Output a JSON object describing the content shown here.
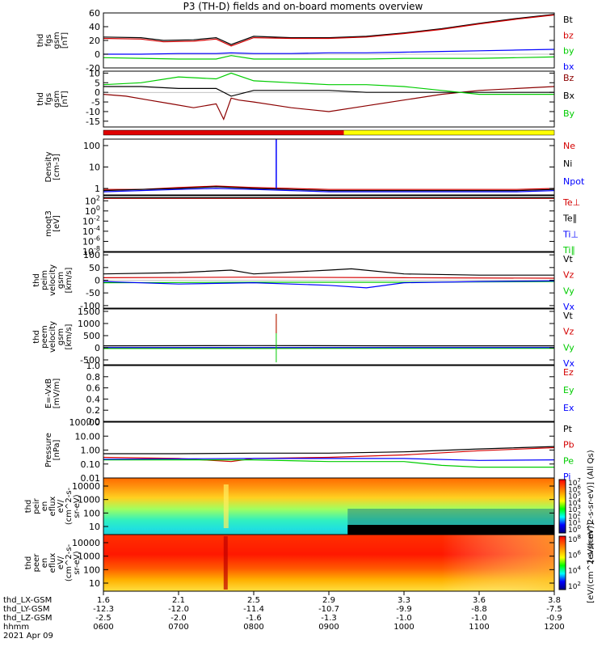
{
  "title": "P3 (TH-D) fields and on-board moments overview",
  "date": "2021 Apr 09",
  "colors": {
    "black": "#000000",
    "red": "#d40000",
    "green": "#00dd00",
    "blue": "#0000ff",
    "darkred": "#8b0000",
    "yellow": "#ffff00"
  },
  "chart_data": [
    {
      "id": "fgs-gsm",
      "type": "line",
      "ylabel": [
        "thd",
        "fgs",
        "gsm",
        "[nT]"
      ],
      "yticks": [
        "60",
        "40",
        "20",
        "0",
        "-20"
      ],
      "ylim": [
        -20,
        60
      ],
      "legend": [
        {
          "label": "Bt",
          "color": "#000000"
        },
        {
          "label": "bz",
          "color": "#d40000"
        },
        {
          "label": "by",
          "color": "#00cc00"
        },
        {
          "label": "bx",
          "color": "#0000ff"
        }
      ],
      "series": [
        {
          "name": "Bt",
          "color": "#000000",
          "x": [
            6.0,
            6.5,
            6.8,
            7.2,
            7.5,
            7.7,
            8.0,
            8.5,
            9.0,
            9.5,
            10.0,
            10.5,
            11.0,
            11.5,
            12.0
          ],
          "y": [
            25,
            24,
            20,
            21,
            24,
            14,
            26,
            24,
            24,
            26,
            31,
            37,
            45,
            52,
            58
          ]
        },
        {
          "name": "bz",
          "color": "#d40000",
          "x": [
            6.0,
            6.5,
            6.8,
            7.2,
            7.5,
            7.7,
            8.0,
            8.5,
            9.0,
            9.5,
            10.0,
            10.5,
            11.0,
            11.5,
            12.0
          ],
          "y": [
            23,
            22,
            18,
            19,
            22,
            12,
            24,
            23,
            23,
            25,
            30,
            36,
            44,
            51,
            57
          ]
        },
        {
          "name": "by",
          "color": "#00cc00",
          "x": [
            6.0,
            6.5,
            7.0,
            7.5,
            7.7,
            8.0,
            8.5,
            9.0,
            9.5,
            10.0,
            10.5,
            11.0,
            11.5,
            12.0
          ],
          "y": [
            -5,
            -6,
            -7,
            -7,
            -2,
            -7,
            -7,
            -7,
            -7,
            -6,
            -6,
            -6,
            -5,
            -4
          ]
        },
        {
          "name": "bx",
          "color": "#0000ff",
          "x": [
            6.0,
            6.5,
            7.0,
            7.5,
            7.7,
            8.0,
            8.5,
            9.0,
            9.5,
            10.0,
            10.5,
            11.0,
            11.5,
            12.0
          ],
          "y": [
            0,
            0,
            1,
            1,
            2,
            1,
            1,
            2,
            2,
            3,
            4,
            5,
            6,
            7
          ]
        }
      ]
    },
    {
      "id": "fgs-gse-zoom",
      "type": "line",
      "ylabel": [
        "thd",
        "fgs",
        "gsm",
        "[nT]"
      ],
      "yticks": [
        "10",
        "5",
        "0",
        "-5",
        "-10",
        "-15"
      ],
      "ylim": [
        -18,
        11
      ],
      "legend": [
        {
          "label": "Bz",
          "color": "#8b0000"
        },
        {
          "label": "Bx",
          "color": "#000000"
        },
        {
          "label": "By",
          "color": "#00cc00"
        }
      ],
      "series": [
        {
          "name": "Bz",
          "color": "#8b0000",
          "x": [
            6.0,
            6.3,
            6.6,
            6.9,
            7.2,
            7.5,
            7.6,
            7.7,
            7.8,
            8.0,
            8.5,
            9.0,
            9.5,
            10.0,
            10.5,
            11.0,
            11.5,
            12.0
          ],
          "y": [
            -1,
            -2,
            -4,
            -6,
            -8,
            -6,
            -14,
            -3,
            -4,
            -5,
            -8,
            -10,
            -7,
            -4,
            -1,
            1,
            2,
            3
          ]
        },
        {
          "name": "Bx",
          "color": "#000000",
          "x": [
            6.0,
            6.5,
            7.0,
            7.5,
            7.7,
            8.0,
            8.5,
            9.0,
            9.5,
            10.0,
            10.5,
            11.0,
            11.5,
            12.0
          ],
          "y": [
            3,
            3,
            2,
            2,
            -2,
            1,
            1,
            1,
            0,
            0,
            0,
            0,
            0,
            0
          ]
        },
        {
          "name": "By",
          "color": "#00cc00",
          "x": [
            6.0,
            6.5,
            7.0,
            7.5,
            7.7,
            8.0,
            8.5,
            9.0,
            9.5,
            10.0,
            10.5,
            11.0,
            11.5,
            12.0
          ],
          "y": [
            4,
            5,
            8,
            7,
            10,
            6,
            5,
            4,
            4,
            3,
            1,
            -1,
            -1,
            -1
          ]
        }
      ]
    },
    {
      "id": "density",
      "type": "line",
      "scale": "log",
      "ylabel": [
        "Density",
        "[cm-3]"
      ],
      "yticks": [
        "100",
        "10",
        "1"
      ],
      "ylim": [
        0.5,
        200
      ],
      "legend": [
        {
          "label": "Ne",
          "color": "#d40000"
        },
        {
          "label": "Ni",
          "color": "#000000"
        },
        {
          "label": "Npot",
          "color": "#0000ff"
        }
      ],
      "series": [
        {
          "name": "Ne",
          "color": "#d40000",
          "x": [
            6.0,
            6.5,
            7.0,
            7.5,
            8.0,
            8.5,
            9.0,
            9.5,
            10.0,
            10.5,
            11.0,
            11.5,
            12.0
          ],
          "y": [
            0.9,
            0.9,
            1.1,
            1.3,
            1.1,
            1.0,
            0.9,
            0.9,
            0.9,
            0.9,
            0.9,
            0.9,
            1.0
          ]
        },
        {
          "name": "Ni",
          "color": "#000000",
          "x": [
            6.0,
            6.5,
            7.0,
            7.5,
            8.0,
            8.5,
            9.0,
            9.5,
            10.0,
            10.5,
            11.0,
            11.5,
            12.0
          ],
          "y": [
            0.8,
            0.9,
            1.0,
            1.2,
            1.0,
            0.9,
            0.8,
            0.8,
            0.8,
            0.8,
            0.8,
            0.8,
            0.9
          ]
        },
        {
          "name": "Npot",
          "color": "#0000ff",
          "x": [
            6.0,
            6.5,
            7.0,
            7.5,
            8.0,
            8.5,
            9.0,
            9.5,
            10.0,
            10.5,
            11.0,
            11.5,
            12.0
          ],
          "y": [
            0.7,
            0.8,
            0.9,
            1.0,
            0.9,
            0.8,
            0.7,
            0.7,
            0.7,
            0.7,
            0.7,
            0.7,
            0.8
          ]
        }
      ]
    },
    {
      "id": "temperature",
      "type": "line",
      "scale": "log",
      "ylabel": [
        "moqt3",
        "[eV]"
      ],
      "yticks": [
        "10^2",
        "10^0",
        "10^-2",
        "10^-4",
        "10^-6",
        "10^-8"
      ],
      "ylim": [
        1e-08,
        1000.0
      ],
      "legend": [
        {
          "label": "Te⊥",
          "color": "#d40000"
        },
        {
          "label": "Te∥",
          "color": "#000000"
        },
        {
          "label": "Ti⊥",
          "color": "#0000ff"
        },
        {
          "label": "Ti∥",
          "color": "#00cc00"
        }
      ],
      "series": [
        {
          "name": "Te⊥",
          "color": "#d40000",
          "x": [
            6,
            8,
            10,
            12
          ],
          "y": [
            300,
            300,
            300,
            300
          ]
        },
        {
          "name": "Te∥",
          "color": "#000000",
          "x": [
            6,
            8,
            10,
            12
          ],
          "y": [
            400,
            400,
            400,
            400
          ]
        }
      ]
    },
    {
      "id": "peim-velocity",
      "type": "line",
      "ylabel": [
        "thd",
        "peim",
        "velocity",
        "gsm",
        "[km/s]"
      ],
      "yticks": [
        "100",
        "50",
        "0",
        "-50",
        "-100"
      ],
      "ylim": [
        -110,
        110
      ],
      "legend": [
        {
          "label": "Vt",
          "color": "#000000"
        },
        {
          "label": "Vz",
          "color": "#d40000"
        },
        {
          "label": "Vy",
          "color": "#00cc00"
        },
        {
          "label": "Vx",
          "color": "#0000ff"
        }
      ],
      "series": [
        {
          "name": "Vt",
          "color": "#000000",
          "x": [
            6,
            7,
            7.7,
            8,
            9,
            9.3,
            10,
            11,
            12
          ],
          "y": [
            25,
            30,
            40,
            25,
            40,
            45,
            25,
            20,
            20
          ]
        },
        {
          "name": "Vz",
          "color": "#d40000",
          "x": [
            6,
            8,
            10,
            12
          ],
          "y": [
            10,
            12,
            10,
            8
          ]
        },
        {
          "name": "Vy",
          "color": "#00cc00",
          "x": [
            6,
            8,
            10,
            12
          ],
          "y": [
            -10,
            -8,
            -8,
            -5
          ]
        },
        {
          "name": "Vx",
          "color": "#0000ff",
          "x": [
            6,
            7,
            8,
            9,
            9.5,
            10,
            11,
            12
          ],
          "y": [
            -5,
            -15,
            -10,
            -20,
            -30,
            -10,
            -5,
            -3
          ]
        }
      ]
    },
    {
      "id": "peem-velocity",
      "type": "line",
      "ylabel": [
        "thd",
        "peem",
        "velocity",
        "gsm",
        "[km/s]"
      ],
      "yticks": [
        "1500",
        "1000",
        "500",
        "0",
        "-500"
      ],
      "ylim": [
        -700,
        1600
      ],
      "legend": [
        {
          "label": "Vt",
          "color": "#000000"
        },
        {
          "label": "Vz",
          "color": "#d40000"
        },
        {
          "label": "Vy",
          "color": "#00cc00"
        },
        {
          "label": "Vx",
          "color": "#0000ff"
        }
      ],
      "series": [
        {
          "name": "Vt",
          "color": "#000000",
          "x": [
            6,
            8,
            10,
            12
          ],
          "y": [
            80,
            90,
            80,
            80
          ]
        },
        {
          "name": "Vz",
          "color": "#d40000",
          "x": [
            6,
            8,
            10,
            12
          ],
          "y": [
            0,
            0,
            0,
            0
          ]
        },
        {
          "name": "Vy",
          "color": "#00cc00",
          "x": [
            6,
            8,
            10,
            12
          ],
          "y": [
            -30,
            -30,
            -20,
            -20
          ]
        },
        {
          "name": "Vx",
          "color": "#0000ff",
          "x": [
            6,
            8,
            10,
            12
          ],
          "y": [
            10,
            10,
            10,
            10
          ]
        }
      ]
    },
    {
      "id": "efield",
      "type": "line",
      "ylabel": [
        "E=-VxB",
        "[mV/m]"
      ],
      "yticks": [
        "1.0",
        "0.8",
        "0.6",
        "0.4",
        "0.2",
        "0.0"
      ],
      "ylim": [
        0,
        1
      ],
      "legend": [
        {
          "label": "Ez",
          "color": "#d40000"
        },
        {
          "label": "Ey",
          "color": "#00cc00"
        },
        {
          "label": "Ex",
          "color": "#0000ff"
        }
      ],
      "series": []
    },
    {
      "id": "pressure",
      "type": "line",
      "scale": "log",
      "ylabel": [
        "Pressure",
        "[nPa]"
      ],
      "yticks": [
        "100.00",
        "10.00",
        "1.00",
        "0.10",
        "0.01"
      ],
      "ylim": [
        0.01,
        100
      ],
      "legend": [
        {
          "label": "Pt",
          "color": "#000000"
        },
        {
          "label": "Pb",
          "color": "#d40000"
        },
        {
          "label": "Pe",
          "color": "#00cc00"
        },
        {
          "label": "Pi",
          "color": "#0000ff"
        }
      ],
      "series": [
        {
          "name": "Pt",
          "color": "#000000",
          "x": [
            6,
            7,
            8,
            9,
            10,
            11,
            12
          ],
          "y": [
            0.55,
            0.55,
            0.6,
            0.6,
            0.75,
            1.2,
            1.8
          ]
        },
        {
          "name": "Pb",
          "color": "#d40000",
          "x": [
            6,
            7,
            7.7,
            8,
            9,
            10,
            11,
            12
          ],
          "y": [
            0.3,
            0.25,
            0.15,
            0.25,
            0.3,
            0.45,
            0.9,
            1.5
          ]
        },
        {
          "name": "Pe",
          "color": "#00cc00",
          "x": [
            6,
            7,
            8,
            9,
            10,
            10.5,
            11,
            12
          ],
          "y": [
            0.2,
            0.2,
            0.2,
            0.15,
            0.15,
            0.08,
            0.06,
            0.06
          ]
        },
        {
          "name": "Pi",
          "color": "#0000ff",
          "x": [
            6,
            8,
            10,
            11,
            12
          ],
          "y": [
            0.22,
            0.25,
            0.25,
            0.18,
            0.2
          ]
        }
      ]
    },
    {
      "id": "peir-spectrogram",
      "type": "heatmap",
      "ylabel": [
        "thd",
        "peir",
        "en",
        "eflux",
        "eV/",
        "(cm^2-s-",
        "sr-eV)"
      ],
      "yticks": [
        "10000",
        "1000",
        "100",
        "10"
      ],
      "colorbar_ticks": [
        "10^7",
        "10^6",
        "10^5",
        "10^4",
        "10^3",
        "10^2",
        "10^1",
        "10^0"
      ],
      "colorbar_label": "[eV/(cm^2-s-sr-eV)] (All Qs)"
    },
    {
      "id": "peer-spectrogram",
      "type": "heatmap",
      "ylabel": [
        "thd",
        "peer",
        "en",
        "eflux",
        "eV/",
        "(cm^2-s-",
        "sr-eV)"
      ],
      "yticks": [
        "10000",
        "1000",
        "100",
        "10"
      ],
      "colorbar_ticks": [
        "10^8",
        "10^6",
        "10^4",
        "10^2"
      ],
      "colorbar_label": "[eV/(cm^2-s-sr-eV)]"
    }
  ],
  "axis_labels": {
    "rows": [
      {
        "label": "thd_LX-GSM",
        "values": [
          "1.6",
          "2.1",
          "2.5",
          "2.9",
          "3.3",
          "3.6",
          "3.8"
        ]
      },
      {
        "label": "thd_LY-GSM",
        "values": [
          "-12.3",
          "-12.0",
          "-11.4",
          "-10.7",
          "-9.9",
          "-8.8",
          "-7.5"
        ]
      },
      {
        "label": "thd_LZ-GSM",
        "values": [
          "-2.5",
          "-2.0",
          "-1.6",
          "-1.3",
          "-1.0",
          "-1.0",
          "-0.9"
        ]
      },
      {
        "label": "hhmm",
        "values": [
          "0600",
          "0700",
          "0800",
          "0900",
          "1000",
          "1100",
          "1200"
        ]
      }
    ]
  }
}
